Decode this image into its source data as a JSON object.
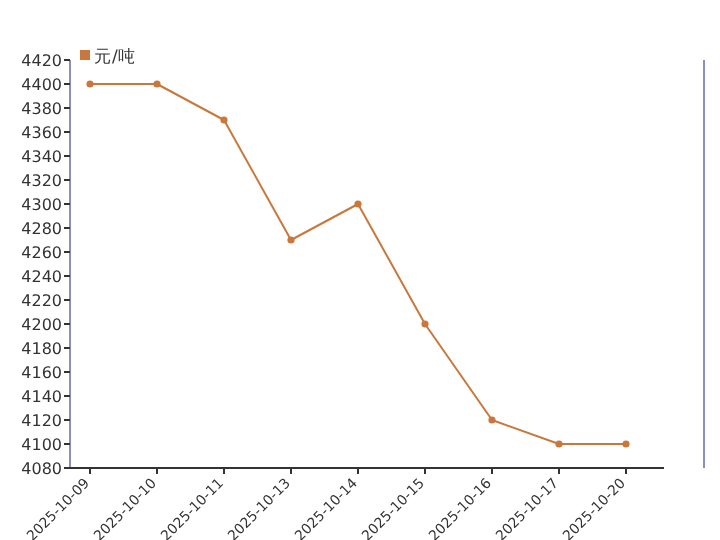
{
  "chart_data": {
    "type": "line",
    "categories": [
      "2025-10-09",
      "2025-10-10",
      "2025-10-11",
      "2025-10-13",
      "2025-10-14",
      "2025-10-15",
      "2025-10-16",
      "2025-10-17",
      "2025-10-20"
    ],
    "series": [
      {
        "name": "元/吨",
        "color": "#c8783c",
        "values": [
          4400,
          4400,
          4370,
          4270,
          4300,
          4200,
          4120,
          4100,
          4100
        ]
      }
    ],
    "ylim": [
      4080,
      4420
    ],
    "yticks": [
      4080,
      4100,
      4120,
      4140,
      4160,
      4180,
      4200,
      4220,
      4240,
      4260,
      4280,
      4300,
      4320,
      4340,
      4360,
      4380,
      4400,
      4420
    ],
    "legend": "top left",
    "marker": "circle"
  }
}
